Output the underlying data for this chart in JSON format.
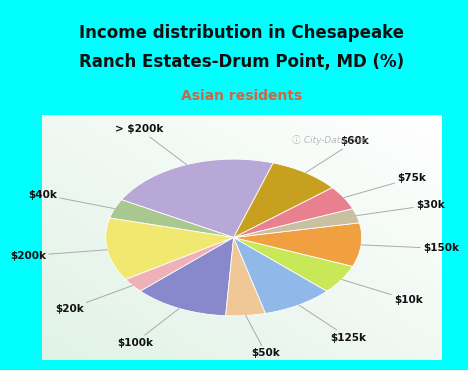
{
  "title1": "Income distribution in Chesapeake",
  "title2": "Ranch Estates-Drum Point, MD (%)",
  "subtitle": "Asian residents",
  "labels": [
    "> $200k",
    "$40k",
    "$200k",
    "$20k",
    "$100k",
    "$50k",
    "$125k",
    "$10k",
    "$150k",
    "$30k",
    "$75k",
    "$60k"
  ],
  "sizes": [
    22,
    4,
    13,
    3,
    12,
    5,
    9,
    6,
    9,
    3,
    5,
    9
  ],
  "colors": [
    "#b8a8d8",
    "#a8c890",
    "#f0e870",
    "#f0b0b8",
    "#8888cc",
    "#f0c898",
    "#90b8e8",
    "#c8e858",
    "#f0a040",
    "#c8c0a0",
    "#e88090",
    "#c8a020"
  ],
  "bg_top": "#00ffff",
  "bg_chart_color": "#e0f0e8",
  "title_color": "#111111",
  "subtitle_color": "#cc6644",
  "startangle": 72,
  "label_fontsize": 7.5,
  "watermark": "City-Data.com",
  "title_fontsize": 12,
  "subtitle_fontsize": 10
}
